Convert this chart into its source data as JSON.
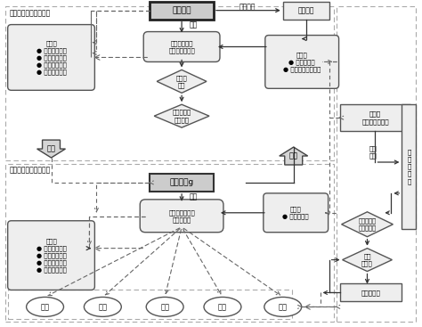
{
  "upper_region_label": "上层决策者：电网公司",
  "lower_region_label": "下层决策者：发电集团",
  "upper_main_box": "电网公司",
  "lower_main_box": "发电集团g",
  "elec_user": "电力用户",
  "sell_elec_label": "销售电力",
  "decision_upper": "决策",
  "decision_lower": "决策",
  "buy_elec": "购电",
  "sell_elec": "售电",
  "upper_process_box": "电力分配计划\n和电力销售价格",
  "lower_process_box": "各类电源发电量\n和上网价格",
  "upper_uncertain": "不确定\n因素",
  "upper_fuzzy": "模糊参数：\n备用系数",
  "lower_fuzzy": "模糊参数：\n碳排放系数",
  "lower_uncertain": "不确\n定因素",
  "upper_constraint": "约束：\n● 电力供应约束\n● 电力安全约束\n● 电力备用约束\n● 销售价格约束",
  "lower_constraint": "约束：\n● 输出功率约束\n● 电量平衡约束\n● 销售收入约束\n● 销售利润约束",
  "upper_target": "目标：\n● 最大化利润\n● 最小化碳排放数量",
  "lower_target": "目标：\n● 最大化利润",
  "government_box": "政府：\n分配碳排放配额",
  "carbon_market_box": "碳\n交\n易\n市\n场",
  "carbon_trade_label": "碳额\n交易",
  "carbon_amount_box": "碳排放数量",
  "generators": [
    "火电",
    "水电",
    "风电",
    "光电",
    "核电"
  ]
}
